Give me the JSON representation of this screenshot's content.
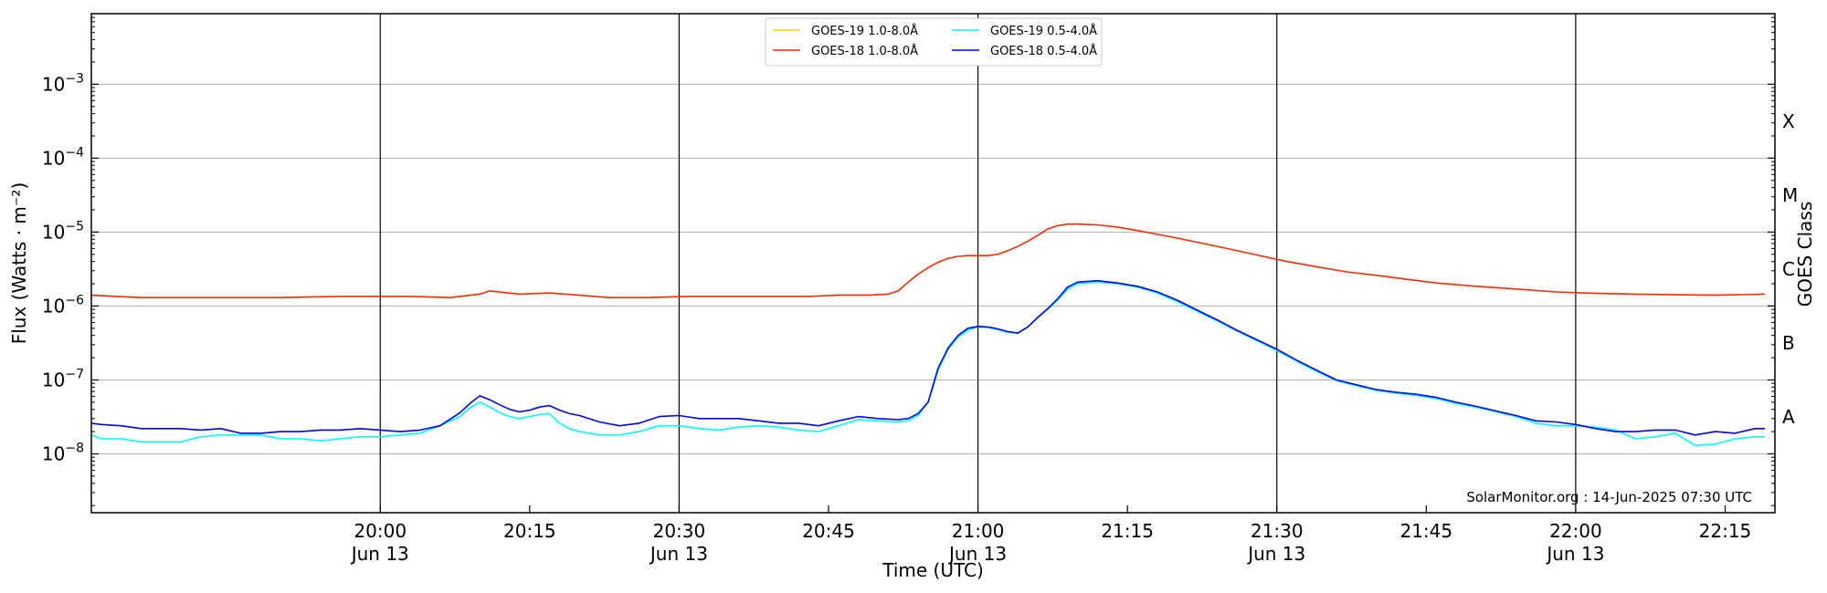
{
  "chart_data": {
    "type": "line",
    "xlabel": "Time (UTC)",
    "ylabel": "Flux (Watts · m⁻²)",
    "y2label": "GOES Class",
    "y_scale": "log",
    "ylim": [
      1.6e-09,
      0.009
    ],
    "xlim_minutes": [
      1171,
      1340
    ],
    "credit": "SolarMonitor.org : 14-Jun-2025 07:30 UTC",
    "y_ticks": [
      {
        "base": "10",
        "exp": "−8",
        "value": 1e-08
      },
      {
        "base": "10",
        "exp": "−7",
        "value": 1e-07
      },
      {
        "base": "10",
        "exp": "−6",
        "value": 1e-06
      },
      {
        "base": "10",
        "exp": "−5",
        "value": 1e-05
      },
      {
        "base": "10",
        "exp": "−4",
        "value": 0.0001
      },
      {
        "base": "10",
        "exp": "−3",
        "value": 0.001
      }
    ],
    "x_ticks": [
      {
        "time": "20:00",
        "date": "Jun 13",
        "minute": 1200
      },
      {
        "time": "20:15",
        "date": "",
        "minute": 1215
      },
      {
        "time": "20:30",
        "date": "Jun 13",
        "minute": 1230
      },
      {
        "time": "20:45",
        "date": "",
        "minute": 1245
      },
      {
        "time": "21:00",
        "date": "Jun 13",
        "minute": 1260
      },
      {
        "time": "21:15",
        "date": "",
        "minute": 1275
      },
      {
        "time": "21:30",
        "date": "Jun 13",
        "minute": 1290
      },
      {
        "time": "21:45",
        "date": "",
        "minute": 1305
      },
      {
        "time": "22:00",
        "date": "Jun 13",
        "minute": 1320
      },
      {
        "time": "22:15",
        "date": "",
        "minute": 1335
      }
    ],
    "vlines_minutes": [
      1200,
      1230,
      1260,
      1290,
      1320
    ],
    "goes_classes": [
      {
        "label": "A",
        "value": 3.16e-08
      },
      {
        "label": "B",
        "value": 3.16e-07
      },
      {
        "label": "C",
        "value": 3.16e-06
      },
      {
        "label": "M",
        "value": 3.16e-05
      },
      {
        "label": "X",
        "value": 0.000316
      }
    ],
    "series": [
      {
        "name": "GOES-19 1.0-8.0Å",
        "color": "#ffd700",
        "x_minutes": [],
        "values": []
      },
      {
        "name": "GOES-18 1.0-8.0Å",
        "color": "#ff2a00",
        "x_minutes": [
          1171,
          1176,
          1180,
          1184,
          1190,
          1196,
          1200,
          1203,
          1207,
          1210,
          1211,
          1214,
          1217,
          1220,
          1223,
          1227,
          1231,
          1235,
          1239,
          1243,
          1246,
          1249,
          1251,
          1252,
          1253,
          1254,
          1255,
          1256,
          1257,
          1258,
          1259,
          1260,
          1261,
          1262,
          1263,
          1264,
          1265,
          1266,
          1267,
          1268,
          1269,
          1270,
          1272,
          1274,
          1276,
          1279,
          1282,
          1285,
          1288,
          1291,
          1294,
          1297,
          1300,
          1303,
          1306,
          1310,
          1314,
          1318,
          1322,
          1326,
          1330,
          1334,
          1339
        ],
        "values": [
          1.4e-06,
          1.3e-06,
          1.3e-06,
          1.3e-06,
          1.3e-06,
          1.35e-06,
          1.35e-06,
          1.35e-06,
          1.3e-06,
          1.45e-06,
          1.6e-06,
          1.45e-06,
          1.5e-06,
          1.4e-06,
          1.3e-06,
          1.3e-06,
          1.35e-06,
          1.35e-06,
          1.35e-06,
          1.35e-06,
          1.4e-06,
          1.4e-06,
          1.45e-06,
          1.6e-06,
          2.1e-06,
          2.7e-06,
          3.3e-06,
          3.9e-06,
          4.4e-06,
          4.7e-06,
          4.8e-06,
          4.8e-06,
          4.8e-06,
          5e-06,
          5.6e-06,
          6.4e-06,
          7.5e-06,
          9e-06,
          1.1e-05,
          1.22e-05,
          1.28e-05,
          1.28e-05,
          1.25e-05,
          1.17e-05,
          1.05e-05,
          8.8e-06,
          7.3e-06,
          6e-06,
          4.9e-06,
          4e-06,
          3.4e-06,
          2.9e-06,
          2.6e-06,
          2.3e-06,
          2.05e-06,
          1.85e-06,
          1.7e-06,
          1.55e-06,
          1.48e-06,
          1.45e-06,
          1.42e-06,
          1.4e-06,
          1.45e-06
        ]
      },
      {
        "name": "GOES-19 0.5-4.0Å",
        "color": "#00ffff",
        "x_minutes": [
          1171,
          1172,
          1174,
          1176,
          1178,
          1180,
          1182,
          1184,
          1186,
          1188,
          1190,
          1192,
          1194,
          1196,
          1198,
          1200,
          1202,
          1204,
          1206,
          1208,
          1209,
          1210,
          1211,
          1212,
          1213,
          1214,
          1215,
          1216,
          1217,
          1218,
          1219,
          1220,
          1222,
          1224,
          1226,
          1228,
          1230,
          1232,
          1234,
          1236,
          1238,
          1240,
          1242,
          1244,
          1246,
          1248,
          1250,
          1252,
          1253,
          1254,
          1255,
          1256,
          1257,
          1258,
          1259,
          1260,
          1261,
          1262,
          1263,
          1264,
          1265,
          1266,
          1267,
          1268,
          1269,
          1270,
          1272,
          1274,
          1276,
          1278,
          1280,
          1282,
          1284,
          1286,
          1288,
          1290,
          1292,
          1294,
          1296,
          1298,
          1300,
          1302,
          1304,
          1306,
          1308,
          1310,
          1312,
          1314,
          1316,
          1318,
          1320,
          1322,
          1324,
          1326,
          1328,
          1330,
          1332,
          1334,
          1336,
          1338,
          1339
        ],
        "values": [
          1.8e-08,
          1.6e-08,
          1.6e-08,
          1.45e-08,
          1.45e-08,
          1.45e-08,
          1.7e-08,
          1.8e-08,
          1.8e-08,
          1.8e-08,
          1.6e-08,
          1.6e-08,
          1.5e-08,
          1.6e-08,
          1.7e-08,
          1.7e-08,
          1.8e-08,
          1.9e-08,
          2.4e-08,
          3.2e-08,
          4.2e-08,
          5e-08,
          4.3e-08,
          3.6e-08,
          3.2e-08,
          3e-08,
          3.2e-08,
          3.4e-08,
          3.5e-08,
          2.6e-08,
          2.2e-08,
          2e-08,
          1.8e-08,
          1.8e-08,
          2e-08,
          2.4e-08,
          2.4e-08,
          2.2e-08,
          2.1e-08,
          2.3e-08,
          2.4e-08,
          2.3e-08,
          2.1e-08,
          2e-08,
          2.4e-08,
          2.9e-08,
          2.8e-08,
          2.7e-08,
          2.8e-08,
          3.3e-08,
          5e-08,
          1.35e-07,
          2.6e-07,
          3.8e-07,
          4.7e-07,
          5.2e-07,
          5.1e-07,
          4.8e-07,
          4.4e-07,
          4.3e-07,
          5.2e-07,
          7e-07,
          9e-07,
          1.2e-06,
          1.7e-06,
          2e-06,
          2.1e-06,
          2e-06,
          1.8e-06,
          1.5e-06,
          1.15e-06,
          8.5e-07,
          6.3e-07,
          4.6e-07,
          3.4e-07,
          2.5e-07,
          1.8e-07,
          1.3e-07,
          9.8e-08,
          8.3e-08,
          7.2e-08,
          6.6e-08,
          6.2e-08,
          5.6e-08,
          4.8e-08,
          4.3e-08,
          3.7e-08,
          3.2e-08,
          2.6e-08,
          2.4e-08,
          2.4e-08,
          2.3e-08,
          2.1e-08,
          1.6e-08,
          1.7e-08,
          1.9e-08,
          1.3e-08,
          1.35e-08,
          1.6e-08,
          1.7e-08,
          1.7e-08
        ]
      },
      {
        "name": "GOES-18 0.5-4.0Å",
        "color": "#0000ff",
        "x_minutes": [
          1171,
          1172,
          1174,
          1176,
          1178,
          1180,
          1182,
          1184,
          1186,
          1188,
          1190,
          1192,
          1194,
          1196,
          1198,
          1200,
          1202,
          1204,
          1206,
          1208,
          1209,
          1210,
          1211,
          1212,
          1213,
          1214,
          1215,
          1216,
          1217,
          1218,
          1219,
          1220,
          1222,
          1224,
          1226,
          1228,
          1230,
          1232,
          1234,
          1236,
          1238,
          1240,
          1242,
          1244,
          1246,
          1248,
          1250,
          1252,
          1253,
          1254,
          1255,
          1256,
          1257,
          1258,
          1259,
          1260,
          1261,
          1262,
          1263,
          1264,
          1265,
          1266,
          1267,
          1268,
          1269,
          1270,
          1272,
          1274,
          1276,
          1278,
          1280,
          1282,
          1284,
          1286,
          1288,
          1290,
          1292,
          1294,
          1296,
          1298,
          1300,
          1302,
          1304,
          1306,
          1308,
          1310,
          1312,
          1314,
          1316,
          1318,
          1320,
          1322,
          1324,
          1326,
          1328,
          1330,
          1332,
          1334,
          1336,
          1338,
          1339
        ],
        "values": [
          2.6e-08,
          2.5e-08,
          2.4e-08,
          2.2e-08,
          2.2e-08,
          2.2e-08,
          2.1e-08,
          2.2e-08,
          1.9e-08,
          1.9e-08,
          2e-08,
          2e-08,
          2.1e-08,
          2.1e-08,
          2.2e-08,
          2.1e-08,
          2e-08,
          2.1e-08,
          2.4e-08,
          3.6e-08,
          4.8e-08,
          6.1e-08,
          5.4e-08,
          4.6e-08,
          4e-08,
          3.7e-08,
          3.9e-08,
          4.3e-08,
          4.5e-08,
          3.9e-08,
          3.5e-08,
          3.3e-08,
          2.7e-08,
          2.4e-08,
          2.6e-08,
          3.2e-08,
          3.3e-08,
          3e-08,
          3e-08,
          3e-08,
          2.8e-08,
          2.6e-08,
          2.6e-08,
          2.4e-08,
          2.8e-08,
          3.2e-08,
          3e-08,
          2.9e-08,
          3e-08,
          3.5e-08,
          5e-08,
          1.45e-07,
          2.7e-07,
          4e-07,
          5e-07,
          5.3e-07,
          5.2e-07,
          4.9e-07,
          4.5e-07,
          4.3e-07,
          5.2e-07,
          7e-07,
          9.2e-07,
          1.25e-06,
          1.8e-06,
          2.1e-06,
          2.2e-06,
          2.05e-06,
          1.85e-06,
          1.55e-06,
          1.2e-06,
          8.8e-07,
          6.5e-07,
          4.7e-07,
          3.5e-07,
          2.6e-07,
          1.85e-07,
          1.35e-07,
          1e-07,
          8.6e-08,
          7.4e-08,
          6.8e-08,
          6.4e-08,
          5.8e-08,
          5e-08,
          4.4e-08,
          3.8e-08,
          3.3e-08,
          2.8e-08,
          2.7e-08,
          2.5e-08,
          2.2e-08,
          2e-08,
          2e-08,
          2.1e-08,
          2.1e-08,
          1.8e-08,
          2e-08,
          1.9e-08,
          2.2e-08,
          2.2e-08
        ]
      }
    ]
  }
}
